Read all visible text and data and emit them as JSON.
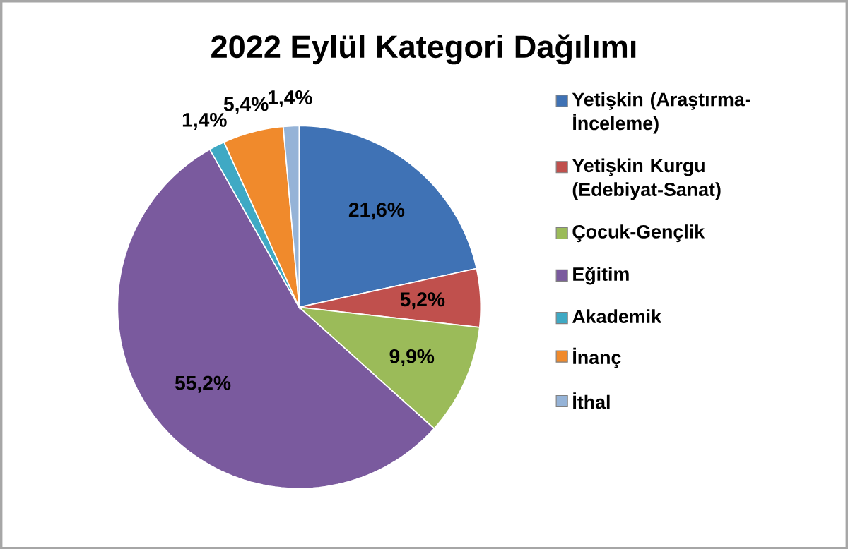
{
  "chart_data": {
    "type": "pie",
    "title": "2022 Eylül Kategori Dağılımı",
    "categories": [
      "Yetişkin (Araştırma-İnceleme)",
      "Yetişkin Kurgu (Edebiyat-Sanat)",
      "Çocuk-Gençlik",
      "Eğitim",
      "Akademik",
      "İnanç",
      "İthal"
    ],
    "values": [
      21.6,
      5.2,
      9.9,
      55.2,
      1.4,
      5.4,
      1.4
    ],
    "value_labels": [
      "21,6%",
      "5,2%",
      "9,9%",
      "55,2%",
      "1,4%",
      "5,4%",
      "1,4%"
    ],
    "colors": [
      "#3f72b5",
      "#c0504d",
      "#9bbb59",
      "#7a5a9e",
      "#3fa9c4",
      "#f08a2c",
      "#95b3d7"
    ],
    "legend": "right"
  }
}
